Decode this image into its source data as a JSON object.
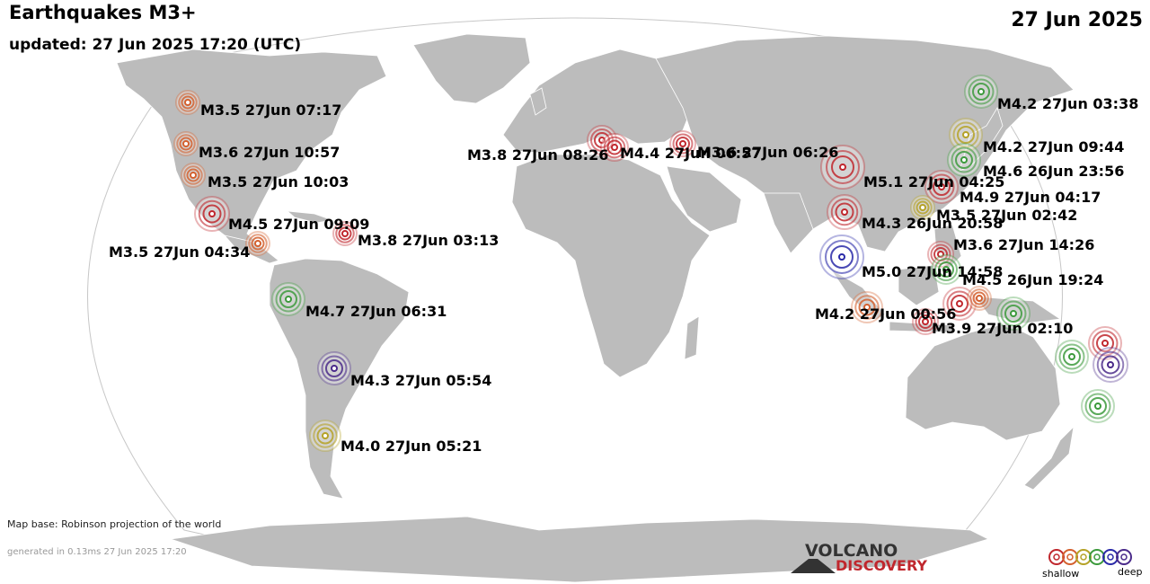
{
  "header": {
    "title": "Earthquakes M3+",
    "updated": "updated: 27 Jun 2025 17:20 (UTC)",
    "date": "27 Jun 2025"
  },
  "footer": {
    "map_base": "Map base: Robinson projection of the world",
    "generated": "generated in 0.13ms 27 Jun 2025 17:20"
  },
  "logo": {
    "line1": "VOLCANO",
    "line2": "DISCOVERY"
  },
  "legend": {
    "left_label": "shallow",
    "right_label": "deep"
  },
  "depth_colors": [
    "#c0272d",
    "#d4602e",
    "#b5a227",
    "#3c9a3c",
    "#2a2aa8",
    "#4a2a8a"
  ],
  "quakes": [
    {
      "id": "q1",
      "label": "M3.5 27Jun 07:17",
      "color": "#d4602e"
    },
    {
      "id": "q2",
      "label": "M3.6 27Jun 10:57",
      "color": "#d4602e"
    },
    {
      "id": "q3",
      "label": "M3.5 27Jun 10:03",
      "color": "#d4602e"
    },
    {
      "id": "q4",
      "label": "M4.5 27Jun 09:09",
      "color": "#c0272d"
    },
    {
      "id": "q5",
      "label": "M3.5 27Jun 04:34",
      "color": "#d4602e"
    },
    {
      "id": "q6",
      "label": "M3.8 27Jun 03:13",
      "color": "#c0272d"
    },
    {
      "id": "q7",
      "label": "M4.7 27Jun 06:31",
      "color": "#3c9a3c"
    },
    {
      "id": "q8",
      "label": "M4.3 27Jun 05:54",
      "color": "#4a2a8a"
    },
    {
      "id": "q9",
      "label": "M4.0 27Jun 05:21",
      "color": "#b5a227"
    },
    {
      "id": "q10",
      "label": "M3.8 27Jun 08:26",
      "color": "#c0272d"
    },
    {
      "id": "q11",
      "label": "M4.4 27Jun 06:57",
      "color": "#c0272d"
    },
    {
      "id": "q12",
      "label": "M3.6 27Jun 06:26",
      "color": "#c0272d"
    },
    {
      "id": "q13",
      "label": "M5.1 27Jun 04:25",
      "color": "#c0272d"
    },
    {
      "id": "q14",
      "label": "M4.3 26Jun 20:58",
      "color": "#c0272d"
    },
    {
      "id": "q15",
      "label": "M5.0 27Jun 14:58",
      "color": "#2a2aa8"
    },
    {
      "id": "q16",
      "label": "M4.2 27Jun 00:56",
      "color": "#d4602e"
    },
    {
      "id": "q17",
      "label": "M4.2 27Jun 03:38",
      "color": "#3c9a3c"
    },
    {
      "id": "q18",
      "label": "M4.2 27Jun 09:44",
      "color": "#b5a227"
    },
    {
      "id": "q19",
      "label": "M4.6 26Jun 23:56",
      "color": "#3c9a3c"
    },
    {
      "id": "q20",
      "label": "M4.9 27Jun 04:17",
      "color": "#c0272d"
    },
    {
      "id": "q21",
      "label": "M3.5 27Jun 02:42",
      "color": "#b5a227"
    },
    {
      "id": "q22",
      "label": "M3.6 27Jun 14:26",
      "color": "#c0272d"
    },
    {
      "id": "q23",
      "label": "M4.5 26Jun 19:24",
      "color": "#3c9a3c"
    },
    {
      "id": "q24",
      "label": "M3.9 27Jun 02:10",
      "color": "#c0272d"
    },
    {
      "id": "q25",
      "label": "",
      "color": "#c0272d"
    },
    {
      "id": "q26",
      "label": "",
      "color": "#d4602e"
    },
    {
      "id": "q27",
      "label": "",
      "color": "#3c9a3c"
    },
    {
      "id": "q28",
      "label": "",
      "color": "#c0272d"
    },
    {
      "id": "q29",
      "label": "",
      "color": "#3c9a3c"
    },
    {
      "id": "q30",
      "label": "",
      "color": "#4a2a8a"
    },
    {
      "id": "q31",
      "label": "",
      "color": "#3c9a3c"
    }
  ]
}
